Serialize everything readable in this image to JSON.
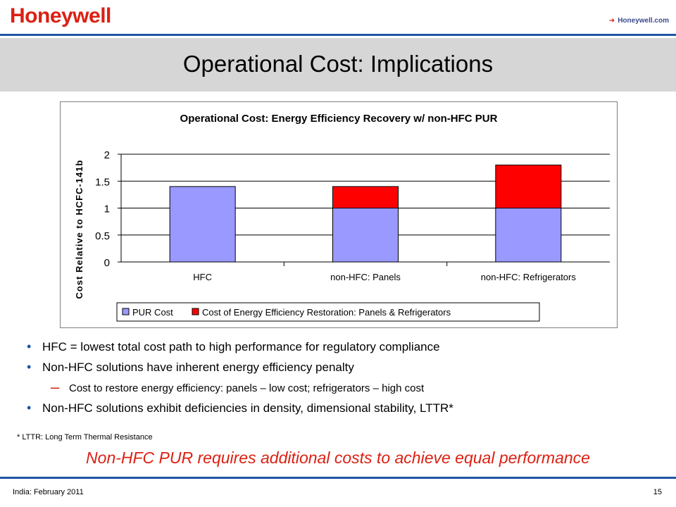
{
  "header": {
    "logo_text": "Honeywell",
    "link_arrow": "➔",
    "link_text": "Honeywell.com"
  },
  "page": {
    "title": "Operational Cost:  Implications"
  },
  "chart_data": {
    "type": "bar",
    "stacked": true,
    "title": "Operational Cost:  Energy Efficiency Recovery w/ non-HFC PUR",
    "xlabel": "",
    "ylabel": "Cost Relative to HCFC-141b",
    "categories": [
      "HFC",
      "non-HFC: Panels",
      "non-HFC: Refrigerators"
    ],
    "series": [
      {
        "name": "PUR Cost",
        "values": [
          1.4,
          1.0,
          1.0
        ],
        "color": "#9999ff"
      },
      {
        "name": "Cost of Energy Efficiency Restoration: Panels & Refrigerators",
        "values": [
          0,
          0.4,
          0.8
        ],
        "color": "#ff0000"
      }
    ],
    "ylim": [
      0,
      2
    ],
    "yticks": [
      "0",
      "0.5",
      "1",
      "1.5",
      "2"
    ],
    "grid": true,
    "legend": "bottom"
  },
  "bullets": {
    "items": [
      "HFC = lowest total cost path to high performance for regulatory compliance",
      "Non-HFC solutions have inherent energy efficiency penalty"
    ],
    "sub_dash": "–",
    "sub_item": "Cost to restore energy efficiency:  panels – low cost; refrigerators – high cost",
    "last_item": "Non-HFC solutions exhibit deficiencies in density, dimensional stability, LTTR*",
    "dot": "•"
  },
  "footnote": "* LTTR:   Long Term Thermal Resistance",
  "conclusion": "Non-HFC PUR requires additional costs to achieve equal performance",
  "footer": {
    "left": "India:  February 2011",
    "page_number": "15"
  }
}
